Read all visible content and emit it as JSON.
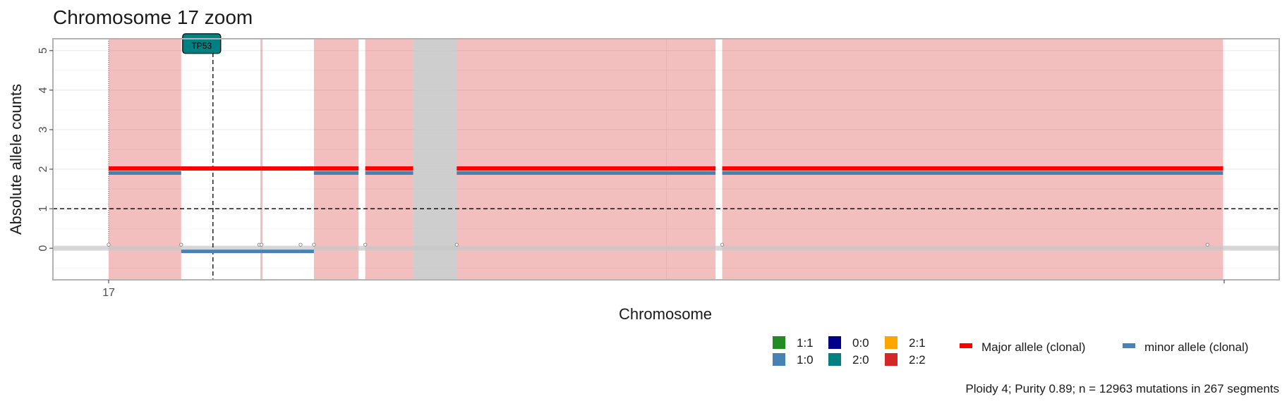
{
  "chart_data": {
    "type": "segments",
    "title": "Chromosome 17 zoom",
    "xlabel": "Chromosome",
    "ylabel": "Absolute allele counts",
    "x_ticks": [
      {
        "label": "17",
        "pos": 0
      }
    ],
    "y_ticks": [
      0,
      1,
      2,
      3,
      4,
      5
    ],
    "ylim": [
      -0.8,
      5.3
    ],
    "xlim": [
      -0.05,
      1.05
    ],
    "ploidy_line": 1,
    "driver_gene": {
      "label": "TP53",
      "pos": 0.0935
    },
    "karyotype_colors": {
      "1:1": "#228B22",
      "1:0": "#4682B4",
      "0:0": "#00008B",
      "2:0": "#008080",
      "2:1": "#FFA500",
      "2:2": "#D62728"
    },
    "background_blocks": [
      {
        "start": 0.0,
        "end": 0.065,
        "karyotype": "2:2"
      },
      {
        "start": 0.136,
        "end": 0.138,
        "karyotype": "2:2"
      },
      {
        "start": 0.184,
        "end": 0.224,
        "karyotype": "2:2"
      },
      {
        "start": 0.23,
        "end": 0.273,
        "karyotype": "2:2"
      },
      {
        "start": 0.273,
        "end": 0.312,
        "karyotype": "NA"
      },
      {
        "start": 0.312,
        "end": 0.544,
        "karyotype": "2:2"
      },
      {
        "start": 0.55,
        "end": 0.999,
        "karyotype": "2:2"
      }
    ],
    "segments": [
      {
        "start": 0.0,
        "end": 0.065,
        "major": 2,
        "minor": 2
      },
      {
        "start": 0.065,
        "end": 0.137,
        "major": 2,
        "minor": 0
      },
      {
        "start": 0.137,
        "end": 0.172,
        "major": 2,
        "minor": 0
      },
      {
        "start": 0.172,
        "end": 0.184,
        "major": 2,
        "minor": 0
      },
      {
        "start": 0.184,
        "end": 0.224,
        "major": 2,
        "minor": 2
      },
      {
        "start": 0.23,
        "end": 0.273,
        "major": 2,
        "minor": 2
      },
      {
        "start": 0.312,
        "end": 0.544,
        "major": 2,
        "minor": 2
      },
      {
        "start": 0.55,
        "end": 0.999,
        "major": 2,
        "minor": 2
      }
    ],
    "breakpoints": [
      0.0,
      0.065,
      0.135,
      0.137,
      0.172,
      0.184,
      0.23,
      0.312,
      0.55,
      0.985
    ],
    "legend_karyotype": [
      {
        "label": "1:1",
        "color": "#228B22"
      },
      {
        "label": "1:0",
        "color": "#4682B4"
      },
      {
        "label": "0:0",
        "color": "#00008B"
      },
      {
        "label": "2:0",
        "color": "#008080"
      },
      {
        "label": "2:1",
        "color": "#FFA500"
      },
      {
        "label": "2:2",
        "color": "#D62728"
      }
    ],
    "legend_allele": [
      {
        "label": "Major allele (clonal)",
        "color": "#FF0000"
      },
      {
        "label": "minor allele (clonal)",
        "color": "#4682B4"
      }
    ],
    "caption": "Ploidy 4; Purity  0.89; n = 12963 mutations in 267 segments"
  }
}
